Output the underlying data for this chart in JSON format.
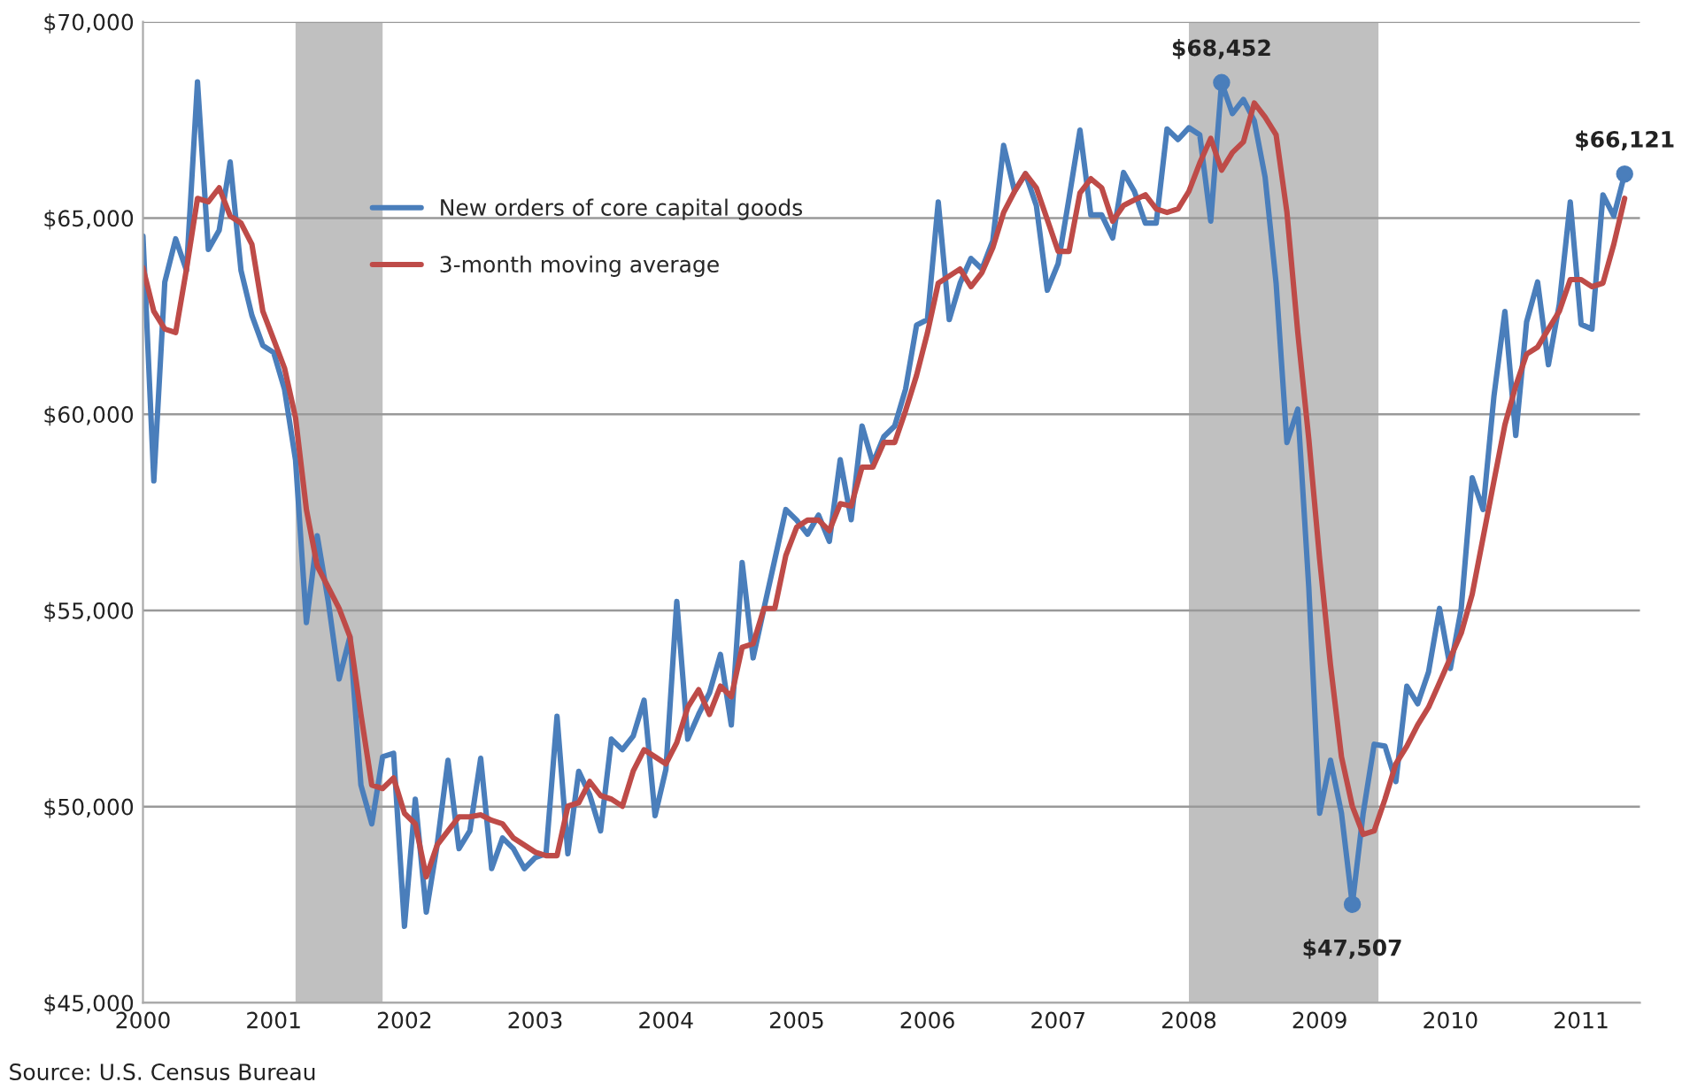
{
  "chart_data": {
    "type": "line",
    "x": [
      2000,
      2000.083,
      2000.167,
      2000.25,
      2000.333,
      2000.417,
      2000.5,
      2000.583,
      2000.667,
      2000.75,
      2000.833,
      2000.917,
      2001,
      2001.083,
      2001.167,
      2001.25,
      2001.333,
      2001.417,
      2001.5,
      2001.583,
      2001.667,
      2001.75,
      2001.833,
      2001.917,
      2002,
      2002.083,
      2002.167,
      2002.25,
      2002.333,
      2002.417,
      2002.5,
      2002.583,
      2002.667,
      2002.75,
      2002.833,
      2002.917,
      2003,
      2003.083,
      2003.167,
      2003.25,
      2003.333,
      2003.417,
      2003.5,
      2003.583,
      2003.667,
      2003.75,
      2003.833,
      2003.917,
      2004,
      2004.083,
      2004.167,
      2004.25,
      2004.333,
      2004.417,
      2004.5,
      2004.583,
      2004.667,
      2004.75,
      2004.833,
      2004.917,
      2005,
      2005.083,
      2005.167,
      2005.25,
      2005.333,
      2005.417,
      2005.5,
      2005.583,
      2005.667,
      2005.75,
      2005.833,
      2005.917,
      2006,
      2006.083,
      2006.167,
      2006.25,
      2006.333,
      2006.417,
      2006.5,
      2006.583,
      2006.667,
      2006.75,
      2006.833,
      2006.917,
      2007,
      2007.083,
      2007.167,
      2007.25,
      2007.333,
      2007.417,
      2007.5,
      2007.583,
      2007.667,
      2007.75,
      2007.833,
      2007.917,
      2008,
      2008.083,
      2008.167,
      2008.25,
      2008.333,
      2008.417,
      2008.5,
      2008.583,
      2008.667,
      2008.75,
      2008.833,
      2008.917,
      2009,
      2009.083,
      2009.167,
      2009.25,
      2009.333,
      2009.417,
      2009.5,
      2009.583,
      2009.667,
      2009.75,
      2009.833,
      2009.917,
      2010,
      2010.083,
      2010.167,
      2010.25,
      2010.333,
      2010.417,
      2010.5,
      2010.583,
      2010.667,
      2010.75,
      2010.833,
      2010.917,
      2011,
      2011.083,
      2011.167,
      2011.25,
      2011.333
    ],
    "series": [
      {
        "name": "New orders of core capital goods",
        "color": "#4a7ebb",
        "values": [
          64540,
          58300,
          63370,
          64470,
          63660,
          68470,
          64200,
          64690,
          66430,
          63660,
          62520,
          61750,
          61570,
          60630,
          58830,
          54690,
          56900,
          55230,
          53250,
          54330,
          50550,
          49560,
          51270,
          51360,
          46950,
          50190,
          47310,
          49020,
          51180,
          48930,
          49380,
          51230,
          48420,
          49200,
          48930,
          48420,
          48700,
          48800,
          52300,
          48800,
          50900,
          50300,
          49380,
          51720,
          51450,
          51800,
          52710,
          49770,
          50950,
          55230,
          51720,
          52350,
          52900,
          53880,
          52080,
          56220,
          53790,
          55050,
          56300,
          57570,
          57300,
          56940,
          57430,
          56760,
          58840,
          57310,
          59700,
          58750,
          59430,
          59700,
          60640,
          62270,
          62410,
          65410,
          62410,
          63340,
          63970,
          63700,
          64420,
          66850,
          65680,
          66130,
          65320,
          63160,
          63840,
          65500,
          67240,
          65080,
          65080,
          64490,
          66160,
          65680,
          64870,
          64870,
          67270,
          67000,
          67300,
          67120,
          64920,
          68452,
          67660,
          68020,
          67480,
          66040,
          63340,
          59280,
          60130,
          55590,
          49830,
          51180,
          49830,
          47507,
          49830,
          51590,
          51540,
          50640,
          53070,
          52620,
          53430,
          55050,
          53520,
          55050,
          58380,
          57570,
          60450,
          62620,
          59460,
          62350,
          63370,
          61260,
          62800,
          65410,
          62290,
          62170,
          65590,
          65050,
          66121
        ]
      },
      {
        "name": "3-month moving average",
        "color": "#be4b48",
        "values": [
          63730,
          62620,
          62170,
          62080,
          63700,
          65500,
          65410,
          65770,
          65050,
          64870,
          64330,
          62620,
          61900,
          61170,
          59910,
          57570,
          56130,
          55590,
          55050,
          54330,
          52350,
          50550,
          50460,
          50730,
          49830,
          49560,
          48210,
          49020,
          49380,
          49740,
          49740,
          49790,
          49650,
          49560,
          49200,
          49020,
          48840,
          48750,
          48750,
          50010,
          50100,
          50640,
          50280,
          50190,
          50010,
          50910,
          51450,
          51270,
          51090,
          51630,
          52530,
          52980,
          52350,
          53070,
          52800,
          54060,
          54150,
          55050,
          55050,
          56400,
          57120,
          57300,
          57300,
          57030,
          57720,
          57660,
          58650,
          58650,
          59280,
          59280,
          60090,
          60990,
          62070,
          63340,
          63520,
          63700,
          63250,
          63610,
          64240,
          65140,
          65680,
          66130,
          65770,
          64960,
          64150,
          64150,
          65640,
          66000,
          65770,
          64920,
          65320,
          65460,
          65590,
          65230,
          65140,
          65230,
          65680,
          66400,
          67030,
          66220,
          66670,
          66940,
          67930,
          67570,
          67120,
          65140,
          62080,
          59370,
          56310,
          53610,
          51270,
          50010,
          49290,
          49380,
          50190,
          51090,
          51540,
          52080,
          52530,
          53160,
          53790,
          54420,
          55410,
          56850,
          58290,
          59730,
          60720,
          61530,
          61710,
          62170,
          62620,
          63430,
          63430,
          63250,
          63340,
          64330,
          65500
        ]
      }
    ],
    "xlim": [
      2000,
      2011.45
    ],
    "xticks": [
      2000,
      2001,
      2002,
      2003,
      2004,
      2005,
      2006,
      2007,
      2008,
      2009,
      2010,
      2011
    ],
    "ylim": [
      45000,
      70000
    ],
    "yticks": [
      {
        "value": 45000,
        "label": "$45,000"
      },
      {
        "value": 50000,
        "label": "$50,000"
      },
      {
        "value": 55000,
        "label": "$55,000"
      },
      {
        "value": 60000,
        "label": "$60,000"
      },
      {
        "value": 65000,
        "label": "$65,000"
      },
      {
        "value": 70000,
        "label": "$70,000"
      }
    ],
    "bands": [
      {
        "axis": "x",
        "from": 2001.167,
        "to": 2001.833,
        "color": "#c0c0c0"
      },
      {
        "axis": "x",
        "from": 2008.0,
        "to": 2009.45,
        "color": "#c0c0c0"
      }
    ],
    "annotations": [
      {
        "text": "$68,452",
        "x": 2008.25,
        "y": 68452
      },
      {
        "text": "$47,507",
        "x": 2009.25,
        "y": 47507
      },
      {
        "text": "$66,121",
        "x": 2011.333,
        "y": 66121
      },
      "Source: U.S. Census Bureau"
    ],
    "grid": "y",
    "legend": "top left"
  }
}
